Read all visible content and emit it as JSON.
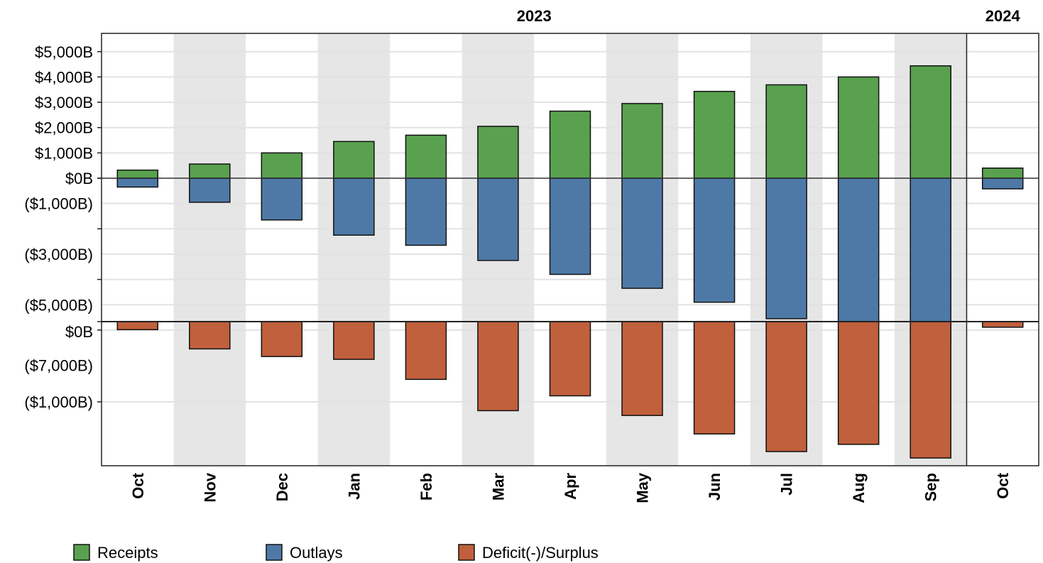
{
  "chart_data": {
    "type": "bar",
    "years": [
      {
        "label": "2023",
        "from": 0,
        "to": 11
      },
      {
        "label": "2024",
        "from": 12,
        "to": 12
      }
    ],
    "categories": [
      "Oct",
      "Nov",
      "Dec",
      "Jan",
      "Feb",
      "Mar",
      "Apr",
      "May",
      "Jun",
      "Jul",
      "Aug",
      "Sep",
      "Oct"
    ],
    "series": [
      {
        "name": "Receipts",
        "panel": "top",
        "color": "#59a14f",
        "values": [
          320,
          560,
          1000,
          1450,
          1700,
          2050,
          2650,
          2950,
          3430,
          3690,
          4000,
          4440,
          400
        ]
      },
      {
        "name": "Outlays",
        "panel": "top",
        "color": "#4e79a7",
        "values": [
          -350,
          -950,
          -1650,
          -2250,
          -2650,
          -3250,
          -3800,
          -4350,
          -4900,
          -5550,
          -5750,
          -6550,
          -420
        ]
      },
      {
        "name": "Deficit(-)/Surplus",
        "panel": "bottom",
        "color": "#c0603c",
        "values": [
          -100,
          -340,
          -435,
          -470,
          -720,
          -1110,
          -925,
          -1170,
          -1400,
          -1620,
          -1530,
          -1700,
          -70
        ]
      }
    ],
    "top_panel": {
      "positive_ticks": [
        "$0B",
        "$1,000B",
        "$2,000B",
        "$3,000B",
        "$4,000B",
        "$5,000B"
      ],
      "negative_ticks": [
        "($1,000B)",
        "($3,000B)",
        "($5,000B)",
        "($7,000B)"
      ]
    },
    "bottom_panel": {
      "ticks": [
        "$0B",
        "($1,000B)"
      ]
    },
    "shaded_months": [
      1,
      3,
      5,
      7,
      9,
      11
    ],
    "grid": true,
    "legend_position": "bottom-left"
  }
}
